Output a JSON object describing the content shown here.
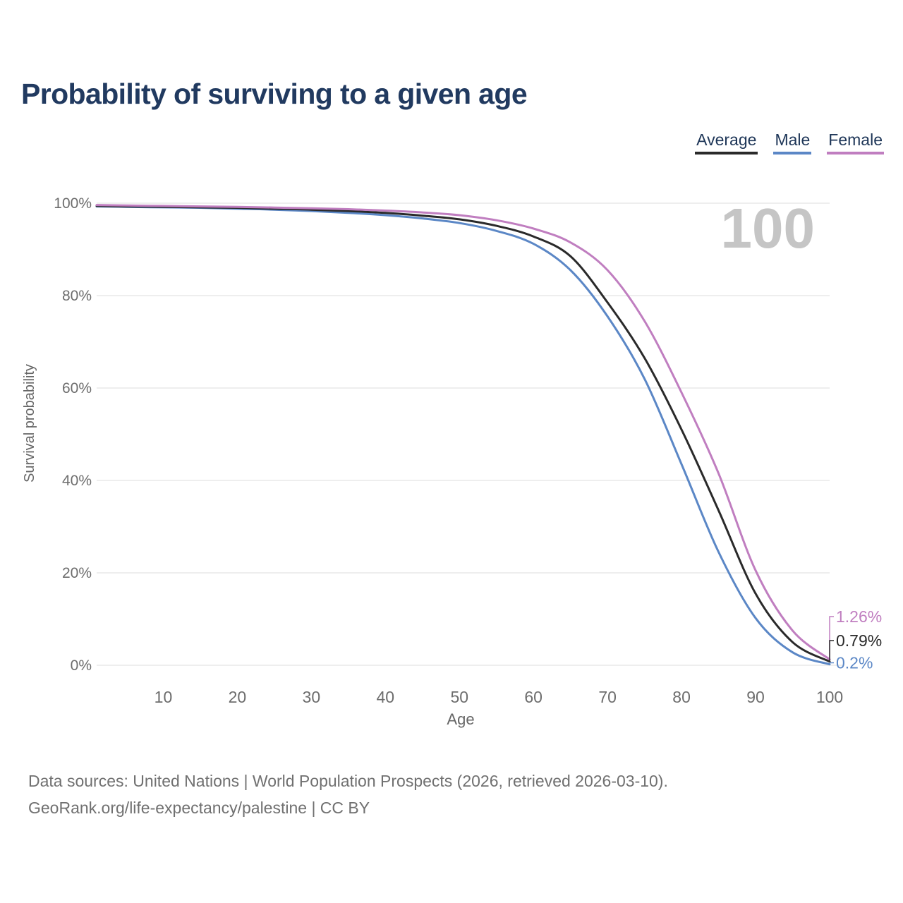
{
  "header": {
    "title": "Probability of surviving to a given age"
  },
  "legend": {
    "items": [
      {
        "label": "Average",
        "color": "#2a2a2a"
      },
      {
        "label": "Male",
        "color": "#5b87c6"
      },
      {
        "label": "Female",
        "color": "#c07ec0"
      }
    ]
  },
  "chart_data": {
    "type": "line",
    "title": "Probability of surviving to a given age",
    "xlabel": "Age",
    "ylabel": "Survival probability",
    "watermark": "100",
    "xlim": [
      1,
      100
    ],
    "ylim": [
      0,
      100
    ],
    "grid": "horizontal",
    "legend_position": "top-right",
    "x_ticks": [
      "10",
      "20",
      "30",
      "40",
      "50",
      "60",
      "70",
      "80",
      "90",
      "100"
    ],
    "x_tick_values": [
      10,
      20,
      30,
      40,
      50,
      60,
      70,
      80,
      90,
      100
    ],
    "y_ticks": [
      "0%",
      "20%",
      "40%",
      "60%",
      "80%",
      "100%"
    ],
    "y_tick_values": [
      0,
      20,
      40,
      60,
      80,
      100
    ],
    "x": [
      1,
      5,
      10,
      15,
      20,
      25,
      30,
      35,
      40,
      45,
      50,
      55,
      60,
      65,
      70,
      75,
      80,
      85,
      90,
      95,
      100
    ],
    "series": [
      {
        "name": "Male",
        "color": "#5b87c6",
        "end_label": "0.2%",
        "values": [
          99.3,
          99.2,
          99.1,
          99.0,
          98.8,
          98.6,
          98.3,
          97.9,
          97.4,
          96.7,
          95.7,
          94.0,
          91.2,
          85.5,
          75.5,
          62.0,
          43.5,
          24.5,
          10.2,
          2.8,
          0.2
        ]
      },
      {
        "name": "Average",
        "color": "#2a2a2a",
        "end_label": "0.79%",
        "values": [
          99.4,
          99.3,
          99.2,
          99.1,
          99.0,
          98.8,
          98.6,
          98.3,
          97.9,
          97.3,
          96.5,
          95.1,
          92.8,
          88.5,
          78.5,
          66.5,
          51.0,
          33.5,
          15.5,
          5.0,
          0.79
        ]
      },
      {
        "name": "Female",
        "color": "#c07ec0",
        "end_label": "1.26%",
        "values": [
          99.6,
          99.5,
          99.4,
          99.3,
          99.2,
          99.05,
          98.9,
          98.7,
          98.4,
          98.0,
          97.4,
          96.3,
          94.5,
          91.5,
          85.5,
          74.5,
          59.0,
          41.5,
          20.5,
          7.5,
          1.26
        ]
      }
    ]
  },
  "footer": {
    "line1": "Data sources: United Nations | World Population Prospects (2026, retrieved 2026-03-10).",
    "line2": "GeoRank.org/life-expectancy/palestine | CC BY"
  }
}
